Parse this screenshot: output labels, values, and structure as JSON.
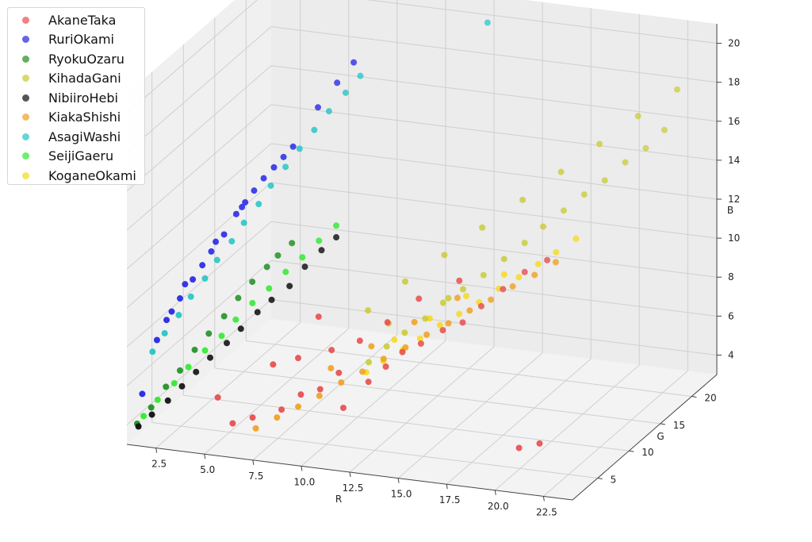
{
  "chart_data": {
    "type": "scatter",
    "xlabel": "R",
    "ylabel": "G",
    "zlabel": "B",
    "xlim": [
      1,
      24
    ],
    "ylim": [
      1,
      24
    ],
    "zlim": [
      3,
      21
    ],
    "grid": true,
    "legend_position": "top-left",
    "x_ticks": [
      "2.5",
      "5.0",
      "7.5",
      "10.0",
      "12.5",
      "15.0",
      "17.5",
      "20.0",
      "22.5"
    ],
    "y_ticks": [
      "5",
      "10",
      "15",
      "20"
    ],
    "z_ticks": [
      "4",
      "6",
      "8",
      "10",
      "12",
      "14",
      "16",
      "18",
      "20"
    ],
    "series": [
      {
        "name": "AkaneTaka",
        "color": "#e84c4c",
        "points": [
          [
            5.5,
            1.6,
            5.8
          ],
          [
            6.2,
            1.8,
            4.5
          ],
          [
            7.1,
            2.2,
            4.8
          ],
          [
            8.4,
            2.8,
            5.2
          ],
          [
            9.3,
            3.1,
            6.0
          ],
          [
            10.2,
            3.4,
            6.3
          ],
          [
            11.0,
            3.9,
            7.1
          ],
          [
            12.4,
            4.3,
            6.7
          ],
          [
            13.1,
            4.9,
            7.4
          ],
          [
            13.6,
            6.0,
            7.9
          ],
          [
            14.3,
            6.8,
            8.2
          ],
          [
            15.2,
            7.5,
            8.8
          ],
          [
            16.0,
            8.2,
            9.1
          ],
          [
            16.7,
            9.0,
            9.8
          ],
          [
            17.4,
            10.3,
            10.4
          ],
          [
            18.1,
            11.6,
            11.0
          ],
          [
            19.0,
            12.4,
            11.5
          ],
          [
            8.9,
            3.9,
            7.6
          ],
          [
            10.4,
            4.6,
            8.0
          ],
          [
            11.6,
            5.4,
            8.4
          ],
          [
            12.8,
            6.1,
            9.3
          ],
          [
            9.6,
            5.0,
            9.5
          ],
          [
            13.9,
            7.7,
            10.2
          ],
          [
            15.6,
            8.9,
            11.0
          ],
          [
            11.2,
            4.0,
            5.3
          ],
          [
            7.8,
            3.3,
            7.3
          ],
          [
            20.3,
            3.9,
            4.4
          ],
          [
            21.2,
            4.4,
            4.6
          ]
        ]
      },
      {
        "name": "RuriOkami",
        "color": "#2222e6",
        "points": [
          [
            1.6,
            1.6,
            5.5
          ],
          [
            2.1,
            2.4,
            8.1
          ],
          [
            2.6,
            3.2,
            9.4
          ],
          [
            2.9,
            3.6,
            10.0
          ],
          [
            3.3,
            4.4,
            10.8
          ],
          [
            3.6,
            5.0,
            11.4
          ],
          [
            3.9,
            5.5,
            12.0
          ],
          [
            4.3,
            6.3,
            12.7
          ],
          [
            4.7,
            7.0,
            13.6
          ],
          [
            5.0,
            7.5,
            14.1
          ],
          [
            5.3,
            8.0,
            14.6
          ],
          [
            5.6,
            8.6,
            15.1
          ],
          [
            6.0,
            9.0,
            15.6
          ],
          [
            6.3,
            9.6,
            16.0
          ],
          [
            6.6,
            10.2,
            16.4
          ],
          [
            2.4,
            3.0,
            9.0
          ],
          [
            3.0,
            4.1,
            10.6
          ],
          [
            4.0,
            5.9,
            12.4
          ],
          [
            4.9,
            7.3,
            13.9
          ],
          [
            7.3,
            12.0,
            18.0
          ],
          [
            7.9,
            13.2,
            19.0
          ],
          [
            8.4,
            14.3,
            19.8
          ]
        ]
      },
      {
        "name": "RyokuOzaru",
        "color": "#1f8f1f",
        "points": [
          [
            1.4,
            1.4,
            4.0
          ],
          [
            1.9,
            2.1,
            4.7
          ],
          [
            2.4,
            2.9,
            5.6
          ],
          [
            2.9,
            3.6,
            6.3
          ],
          [
            3.4,
            4.4,
            7.2
          ],
          [
            3.9,
            5.1,
            7.9
          ],
          [
            4.4,
            6.0,
            8.6
          ],
          [
            4.9,
            6.7,
            9.4
          ],
          [
            5.4,
            7.4,
            10.1
          ],
          [
            5.9,
            8.2,
            10.7
          ],
          [
            6.3,
            8.7,
            11.2
          ],
          [
            6.8,
            9.4,
            11.7
          ]
        ]
      },
      {
        "name": "KihadaGani",
        "color": "#c9c930",
        "points": [
          [
            11.8,
            6.2,
            7.1
          ],
          [
            12.5,
            6.9,
            7.8
          ],
          [
            13.2,
            7.6,
            8.4
          ],
          [
            14.0,
            8.4,
            9.0
          ],
          [
            14.7,
            9.1,
            9.7
          ],
          [
            15.5,
            9.8,
            10.3
          ],
          [
            16.3,
            10.6,
            10.9
          ],
          [
            17.1,
            11.4,
            11.6
          ],
          [
            17.9,
            12.2,
            12.3
          ],
          [
            18.6,
            13.0,
            13.0
          ],
          [
            19.4,
            13.8,
            13.7
          ],
          [
            20.2,
            14.6,
            14.4
          ],
          [
            21.0,
            15.4,
            15.0
          ],
          [
            21.8,
            16.2,
            15.8
          ],
          [
            22.6,
            17.0,
            16.4
          ],
          [
            23.3,
            17.8,
            17.2
          ],
          [
            11.5,
            7.0,
            9.5
          ],
          [
            13.0,
            8.3,
            10.8
          ],
          [
            14.6,
            9.6,
            12.0
          ],
          [
            16.1,
            11.0,
            13.2
          ],
          [
            17.7,
            12.5,
            14.4
          ],
          [
            19.2,
            14.0,
            15.6
          ],
          [
            20.7,
            15.5,
            16.8
          ],
          [
            22.2,
            17.0,
            18.0
          ],
          [
            23.7,
            18.6,
            19.1
          ],
          [
            12.4,
            7.5,
            8.8
          ],
          [
            15.0,
            9.0,
            10.0
          ]
        ]
      },
      {
        "name": "NibiiroHebi",
        "color": "#0d0d0d",
        "points": [
          [
            1.5,
            1.3,
            3.9
          ],
          [
            2.0,
            1.9,
            4.4
          ],
          [
            2.6,
            2.6,
            5.0
          ],
          [
            3.1,
            3.3,
            5.6
          ],
          [
            3.6,
            4.0,
            6.2
          ],
          [
            4.1,
            4.7,
            6.8
          ],
          [
            4.7,
            5.5,
            7.4
          ],
          [
            5.2,
            6.2,
            8.0
          ],
          [
            5.8,
            7.0,
            8.7
          ],
          [
            6.3,
            7.7,
            9.2
          ],
          [
            7.0,
            8.4,
            9.8
          ],
          [
            7.5,
            9.3,
            10.6
          ],
          [
            8.1,
            10.1,
            11.3
          ],
          [
            8.6,
            10.9,
            11.8
          ]
        ]
      },
      {
        "name": "KiakaShishi",
        "color": "#f0a020",
        "points": [
          [
            7.2,
            2.4,
            4.2
          ],
          [
            8.1,
            3.0,
            4.7
          ],
          [
            9.0,
            3.6,
            5.2
          ],
          [
            9.9,
            4.2,
            5.7
          ],
          [
            10.8,
            4.9,
            6.3
          ],
          [
            11.7,
            5.5,
            6.8
          ],
          [
            12.6,
            6.1,
            7.4
          ],
          [
            13.5,
            6.8,
            7.9
          ],
          [
            14.4,
            7.4,
            8.5
          ],
          [
            15.3,
            8.1,
            9.0
          ],
          [
            16.2,
            8.7,
            9.6
          ],
          [
            17.1,
            9.3,
            10.1
          ],
          [
            18.0,
            10.0,
            10.7
          ],
          [
            18.9,
            10.7,
            11.2
          ],
          [
            19.8,
            11.3,
            11.8
          ],
          [
            10.3,
            4.8,
            7.0
          ],
          [
            12.0,
            6.0,
            8.0
          ],
          [
            13.8,
            7.3,
            9.1
          ],
          [
            15.6,
            8.6,
            10.2
          ]
        ]
      },
      {
        "name": "AsagiWashi",
        "color": "#22c4c4",
        "points": [
          [
            2.0,
            2.0,
            7.6
          ],
          [
            2.4,
            2.7,
            8.4
          ],
          [
            2.9,
            3.4,
            9.2
          ],
          [
            3.3,
            4.1,
            10.0
          ],
          [
            3.8,
            4.8,
            10.8
          ],
          [
            4.2,
            5.5,
            11.6
          ],
          [
            4.7,
            6.3,
            12.4
          ],
          [
            5.1,
            7.0,
            13.2
          ],
          [
            5.6,
            7.8,
            14.0
          ],
          [
            6.0,
            8.5,
            14.8
          ],
          [
            6.5,
            9.3,
            15.6
          ],
          [
            7.0,
            10.0,
            16.4
          ],
          [
            7.5,
            10.8,
            17.2
          ],
          [
            8.0,
            11.6,
            18.0
          ],
          [
            8.6,
            12.4,
            18.8
          ],
          [
            9.1,
            13.2,
            19.5
          ],
          [
            14.4,
            17.1,
            21.8
          ]
        ]
      },
      {
        "name": "SeijiGaeru",
        "color": "#2eea2e",
        "points": [
          [
            1.7,
            1.5,
            4.4
          ],
          [
            2.2,
            2.2,
            5.1
          ],
          [
            2.8,
            3.0,
            5.8
          ],
          [
            3.3,
            3.7,
            6.5
          ],
          [
            3.9,
            4.5,
            7.2
          ],
          [
            4.5,
            5.3,
            7.8
          ],
          [
            5.0,
            6.0,
            8.5
          ],
          [
            5.6,
            6.8,
            9.2
          ],
          [
            6.2,
            7.6,
            9.8
          ],
          [
            6.8,
            8.4,
            10.5
          ],
          [
            7.4,
            9.2,
            11.1
          ],
          [
            8.0,
            10.0,
            11.8
          ],
          [
            8.6,
            10.9,
            12.4
          ]
        ]
      },
      {
        "name": "KoganeOkami",
        "color": "#f7d918",
        "points": [
          [
            11.6,
            6.4,
            6.5
          ],
          [
            12.3,
            7.0,
            7.0
          ],
          [
            13.1,
            7.6,
            7.5
          ],
          [
            13.8,
            8.2,
            8.0
          ],
          [
            14.6,
            8.9,
            8.6
          ],
          [
            15.4,
            9.5,
            9.1
          ],
          [
            16.2,
            10.2,
            9.6
          ],
          [
            17.0,
            10.9,
            10.2
          ],
          [
            17.8,
            11.6,
            10.7
          ],
          [
            18.6,
            12.2,
            11.3
          ],
          [
            19.3,
            12.9,
            11.8
          ],
          [
            20.1,
            13.6,
            12.4
          ],
          [
            12.8,
            7.2,
            8.1
          ],
          [
            14.2,
            8.5,
            9.0
          ],
          [
            15.7,
            9.7,
            10.0
          ],
          [
            17.2,
            11.1,
            10.9
          ]
        ]
      }
    ]
  }
}
